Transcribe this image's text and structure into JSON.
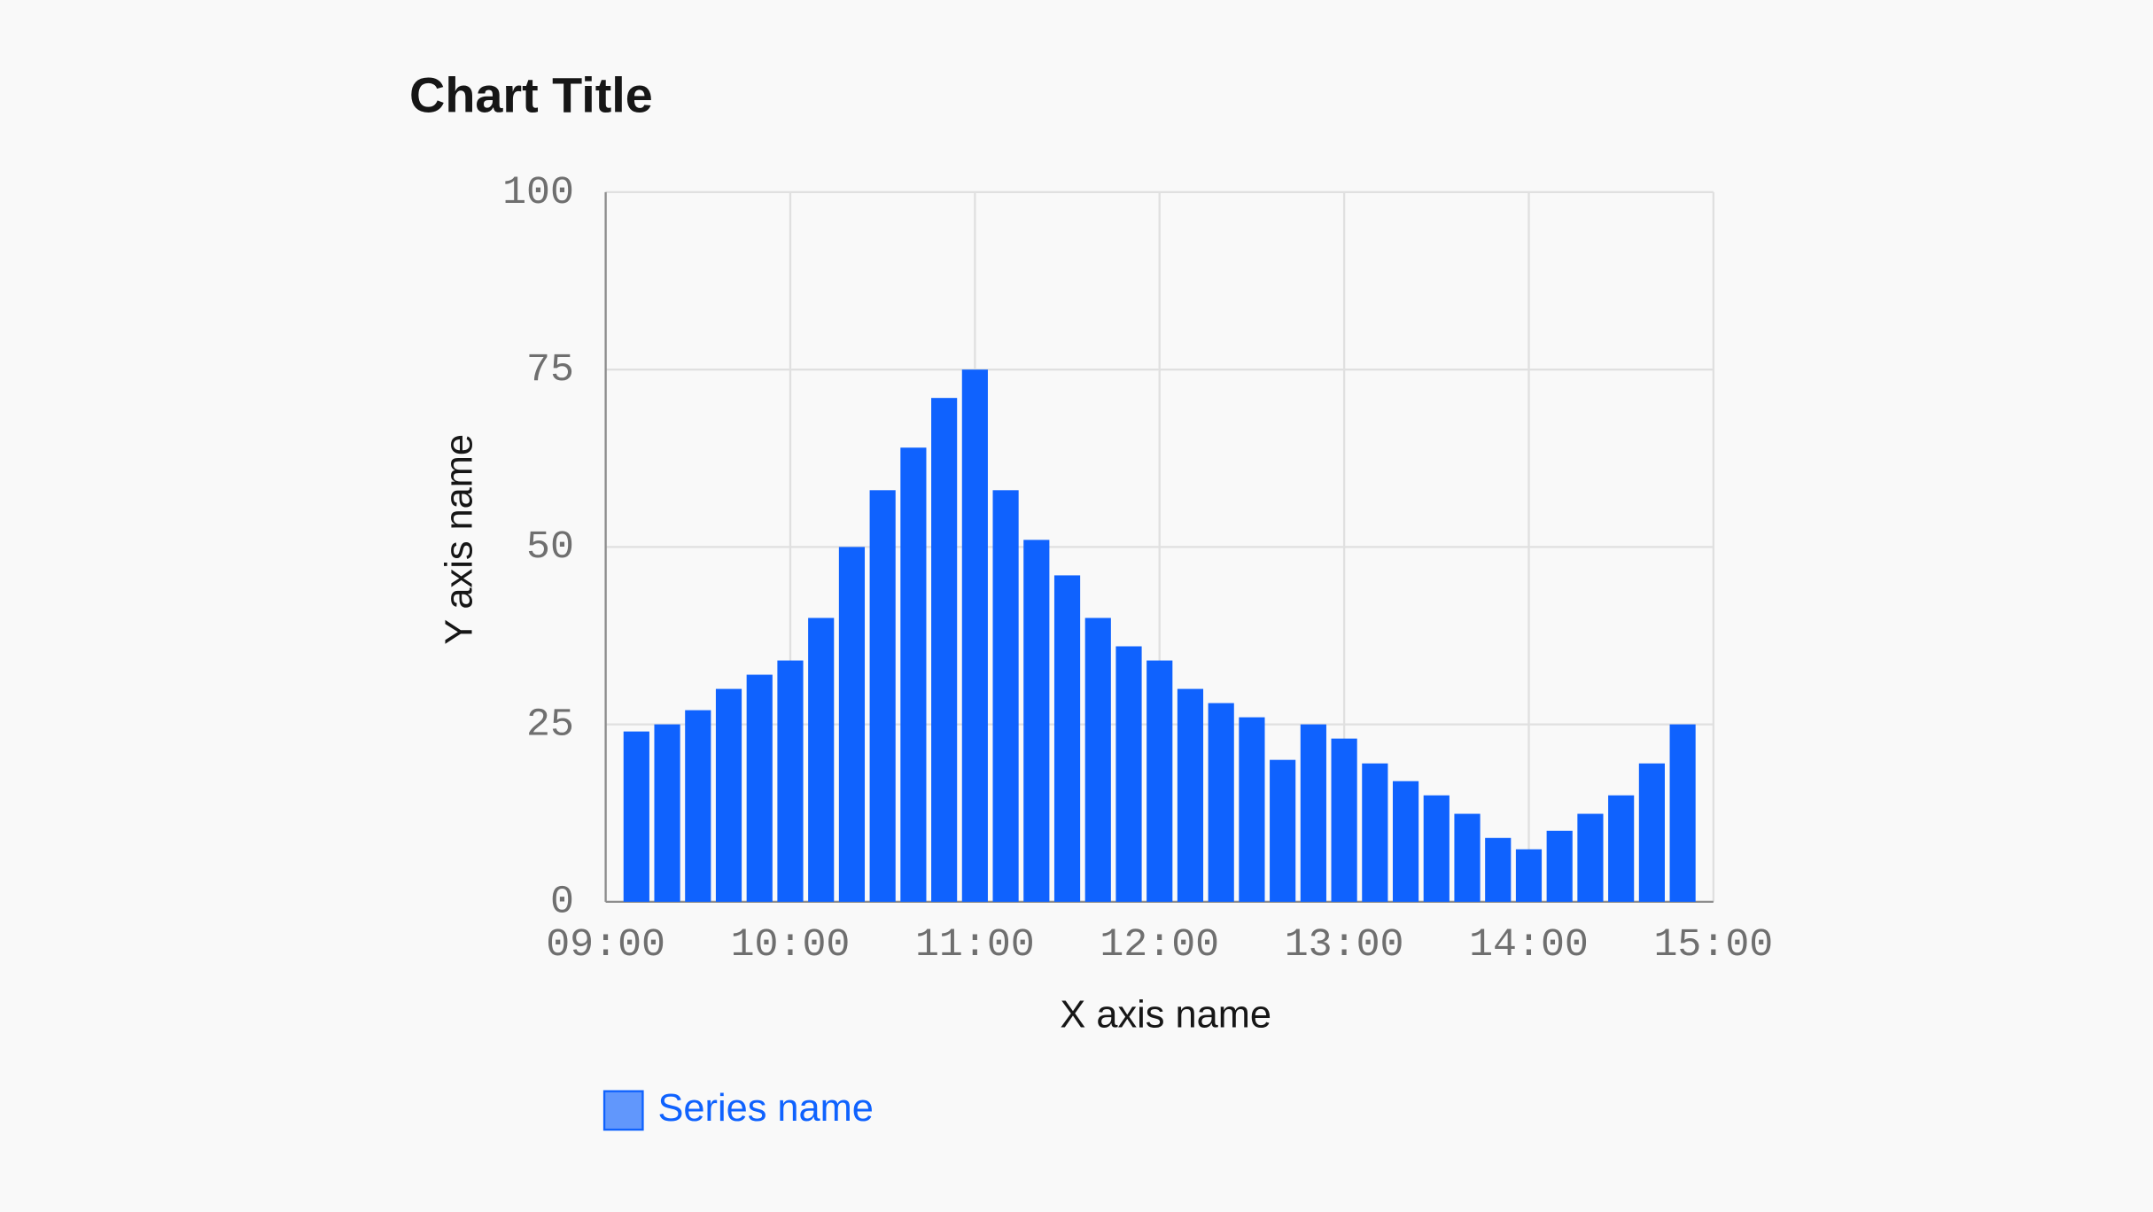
{
  "chart_data": {
    "type": "bar",
    "title": "Chart Title",
    "x_label": "X axis name",
    "y_label": "Y axis name",
    "x": [
      "09:10",
      "09:20",
      "09:30",
      "09:40",
      "09:50",
      "10:00",
      "10:10",
      "10:20",
      "10:30",
      "10:40",
      "10:50",
      "11:00",
      "11:10",
      "11:20",
      "11:30",
      "11:40",
      "11:50",
      "12:00",
      "12:10",
      "12:20",
      "12:30",
      "12:40",
      "12:50",
      "13:00",
      "13:10",
      "13:20",
      "13:30",
      "13:40",
      "13:50",
      "14:00",
      "14:10",
      "14:20",
      "14:30",
      "14:40",
      "14:50"
    ],
    "series": [
      {
        "name": "Series name",
        "color": "#0f62fe",
        "values": [
          24,
          25,
          27,
          30,
          32,
          34,
          40,
          50,
          58,
          64,
          71,
          75,
          58,
          51,
          46,
          40,
          36,
          34,
          30,
          28,
          26,
          20,
          25,
          23,
          19.5,
          17,
          15,
          12.4,
          9,
          7.4,
          10,
          12.4,
          15,
          19.5,
          25
        ]
      }
    ],
    "xlim": [
      "09:00",
      "15:00"
    ],
    "xticks": [
      "09:00",
      "10:00",
      "11:00",
      "12:00",
      "13:00",
      "14:00",
      "15:00"
    ],
    "ylim": [
      0,
      100
    ],
    "yticks": [
      0,
      25,
      50,
      75,
      100
    ],
    "grid": true,
    "legend": "bottom-left"
  }
}
